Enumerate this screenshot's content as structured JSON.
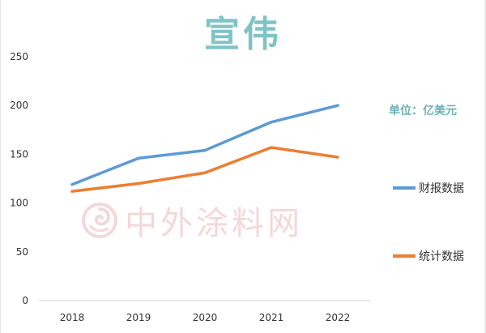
{
  "chart_data": {
    "type": "line",
    "title": "宣伟",
    "unit_label": "单位：亿美元",
    "categories": [
      "2018",
      "2019",
      "2020",
      "2021",
      "2022"
    ],
    "ylim": [
      0,
      250
    ],
    "yticks": [
      "0",
      "50",
      "100",
      "150",
      "200",
      "250"
    ],
    "series": [
      {
        "name": "财报数据",
        "color": "#5b9bd5",
        "values": [
          119,
          146,
          154,
          183,
          200
        ]
      },
      {
        "name": "统计数据",
        "color": "#ed7d31",
        "values": [
          112,
          120,
          131,
          157,
          147
        ]
      }
    ],
    "grid": false,
    "legend": "right"
  },
  "watermark": {
    "text": "中外涂料网",
    "icon": "spiral-logo-icon"
  }
}
